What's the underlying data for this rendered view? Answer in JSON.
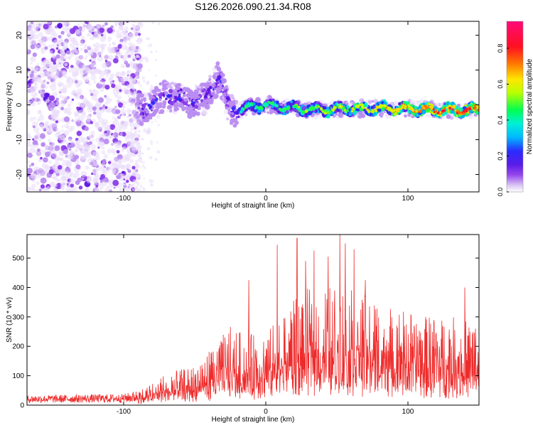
{
  "title": "S126.2026.090.21.34.R08",
  "chart_data": [
    {
      "type": "heatmap",
      "xlabel": "Height of straight line (km)",
      "ylabel": "Frequency (Hz)",
      "xlim": [
        -168,
        150
      ],
      "ylim": [
        -25,
        24
      ],
      "x_ticks": [
        -100,
        0,
        100
      ],
      "y_ticks": [
        -20,
        -10,
        0,
        10,
        20
      ],
      "ridge": [
        {
          "x": -85,
          "y": -1
        },
        {
          "x": -70,
          "y": 3
        },
        {
          "x": -55,
          "y": 1
        },
        {
          "x": -42,
          "y": 2
        },
        {
          "x": -33,
          "y": 8
        },
        {
          "x": -25,
          "y": -2
        },
        {
          "x": -15,
          "y": -1
        },
        {
          "x": 0,
          "y": 0
        },
        {
          "x": 20,
          "y": -1
        },
        {
          "x": 40,
          "y": -1.5
        },
        {
          "x": 60,
          "y": -1
        },
        {
          "x": 80,
          "y": -1
        },
        {
          "x": 100,
          "y": -1
        },
        {
          "x": 120,
          "y": -1.5
        },
        {
          "x": 150,
          "y": -1.5
        }
      ],
      "colorbar": {
        "label": "Normalized spectral amplitude",
        "range": [
          0,
          0.95
        ],
        "ticks": [
          "0.0",
          "0.2",
          "0.4",
          "0.6",
          "0.8"
        ]
      }
    },
    {
      "type": "line",
      "xlabel": "Height of straight line (km)",
      "ylabel": "SNR (10 * v/v)",
      "xlim": [
        -168,
        150
      ],
      "ylim": [
        0,
        580
      ],
      "x_ticks": [
        -100,
        0,
        100
      ],
      "y_ticks": [
        0,
        100,
        200,
        300,
        400,
        500
      ],
      "series_color": "#ee2b2b",
      "envelope": [
        {
          "x": -168,
          "y": 25
        },
        {
          "x": -100,
          "y": 30
        },
        {
          "x": -85,
          "y": 50
        },
        {
          "x": -70,
          "y": 90
        },
        {
          "x": -50,
          "y": 110
        },
        {
          "x": -35,
          "y": 180
        },
        {
          "x": -25,
          "y": 220
        },
        {
          "x": -15,
          "y": 200
        },
        {
          "x": 0,
          "y": 200
        },
        {
          "x": 15,
          "y": 280
        },
        {
          "x": 30,
          "y": 330
        },
        {
          "x": 50,
          "y": 340
        },
        {
          "x": 70,
          "y": 310
        },
        {
          "x": 90,
          "y": 280
        },
        {
          "x": 110,
          "y": 250
        },
        {
          "x": 130,
          "y": 250
        },
        {
          "x": 150,
          "y": 230
        }
      ],
      "spikes": [
        {
          "x": -12,
          "y": 425
        },
        {
          "x": 8,
          "y": 545
        },
        {
          "x": 22,
          "y": 568
        },
        {
          "x": 28,
          "y": 490
        },
        {
          "x": 34,
          "y": 525
        },
        {
          "x": 44,
          "y": 505
        },
        {
          "x": 52,
          "y": 580
        },
        {
          "x": 56,
          "y": 550
        },
        {
          "x": 62,
          "y": 530
        },
        {
          "x": 70,
          "y": 425
        },
        {
          "x": 140,
          "y": 400
        }
      ]
    }
  ]
}
